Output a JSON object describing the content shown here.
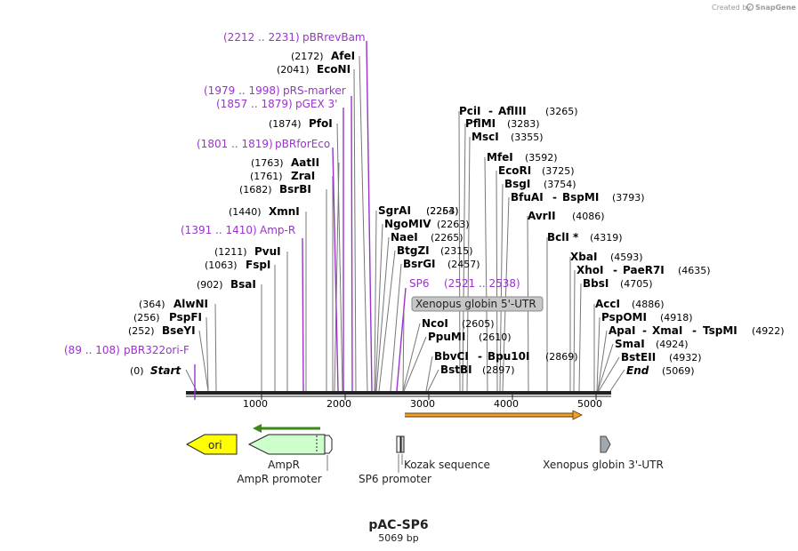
{
  "branding": {
    "created_by": "Created by",
    "app_name": "SnapGene"
  },
  "plasmid": {
    "name": "pAC-SP6",
    "length_label": "5069 bp"
  },
  "axis_ticks": [
    "1000",
    "2000",
    "3000",
    "4000",
    "5000"
  ],
  "sites": [
    {
      "name": "Start",
      "pos": "(0)",
      "italic": true
    },
    {
      "name": "BseYI",
      "pos": "(252)"
    },
    {
      "name": "PspFI",
      "pos": "(256)"
    },
    {
      "name": "AlwNI",
      "pos": "(364)"
    },
    {
      "name": "BsaI",
      "pos": "(902)"
    },
    {
      "name": "FspI",
      "pos": "(1063)"
    },
    {
      "name": "PvuI",
      "pos": "(1211)"
    },
    {
      "name": "XmnI",
      "pos": "(1440)"
    },
    {
      "name": "BsrBI",
      "pos": "(1682)"
    },
    {
      "name": "ZraI",
      "pos": "(1761)"
    },
    {
      "name": "AatII",
      "pos": "(1763)"
    },
    {
      "name": "PfoI",
      "pos": "(1874)"
    },
    {
      "name": "EcoNI",
      "pos": "(2041)"
    },
    {
      "name": "AfeI",
      "pos": "(2172)"
    },
    {
      "name": "SgrAI",
      "pos": "(2254)"
    },
    {
      "name": "NgoMIV",
      "pos": "(2263)"
    },
    {
      "name": "NaeI",
      "pos": "(2265)"
    },
    {
      "name": "BtgZI",
      "pos": "(2315)"
    },
    {
      "name": "BsrGI",
      "pos": "(2457)"
    },
    {
      "name": "NcoI",
      "pos": "(2605)"
    },
    {
      "name": "PpuMI",
      "pos": "(2610)"
    },
    {
      "name": "BbvCI",
      "pos": ""
    },
    {
      "name": "Bpu10I",
      "pos": "(2869)"
    },
    {
      "name": "BstBI",
      "pos": "(2897)"
    },
    {
      "name": "PciI",
      "pos": ""
    },
    {
      "name": "AflIII",
      "pos": "(3265)"
    },
    {
      "name": "PflMI",
      "pos": "(3283)"
    },
    {
      "name": "MscI",
      "pos": "(3355)"
    },
    {
      "name": "MfeI",
      "pos": "(3592)"
    },
    {
      "name": "EcoRI",
      "pos": "(3725)"
    },
    {
      "name": "BsgI",
      "pos": "(3754)"
    },
    {
      "name": "BfuAI",
      "pos": ""
    },
    {
      "name": "BspMI",
      "pos": "(3793)"
    },
    {
      "name": "AvrII",
      "pos": "(4086)"
    },
    {
      "name": "BclI *",
      "pos": "(4319)"
    },
    {
      "name": "XbaI",
      "pos": "(4593)"
    },
    {
      "name": "XhoI",
      "pos": ""
    },
    {
      "name": "PaeR7I",
      "pos": "(4635)"
    },
    {
      "name": "BbsI",
      "pos": "(4705)"
    },
    {
      "name": "AccI",
      "pos": "(4886)"
    },
    {
      "name": "PspOMI",
      "pos": "(4918)"
    },
    {
      "name": "ApaI",
      "pos": ""
    },
    {
      "name": "XmaI",
      "pos": ""
    },
    {
      "name": "TspMI",
      "pos": "(4922)"
    },
    {
      "name": "SmaI",
      "pos": "(4924)"
    },
    {
      "name": "BstEII",
      "pos": "(4932)"
    },
    {
      "name": "End",
      "pos": "(5069)",
      "italic": true
    }
  ],
  "primers": [
    {
      "name": "pBR322ori-F",
      "range": "(89 .. 108)"
    },
    {
      "name": "Amp-R",
      "range": "(1391 .. 1410)"
    },
    {
      "name": "pBRforEco",
      "range": "(1801 .. 1819)"
    },
    {
      "name": "pGEX 3'",
      "range": "(1857 .. 1879)"
    },
    {
      "name": "pRS-marker",
      "range": "(1979 .. 1998)"
    },
    {
      "name": "pBRrevBam",
      "range": "(2212 .. 2231)"
    },
    {
      "name": "SP6",
      "range": "(2521 .. 2538)"
    }
  ],
  "feature_labels": {
    "xenopus_5utr": "Xenopus globin 5'-UTR",
    "ori": "ori",
    "ampr": "AmpR",
    "ampr_promoter": "AmpR promoter",
    "sp6_promoter": "SP6 promoter",
    "kozak": "Kozak sequence",
    "xenopus_3utr": "Xenopus globin 3'-UTR"
  },
  "colors": {
    "primer": "#9933cc",
    "ori": "#ffff00",
    "ampr": "#ccffcc",
    "orf_arrow": "#f0a030",
    "ampr_arrow": "#3a8a1a",
    "utr3": "#a0a8b0"
  }
}
